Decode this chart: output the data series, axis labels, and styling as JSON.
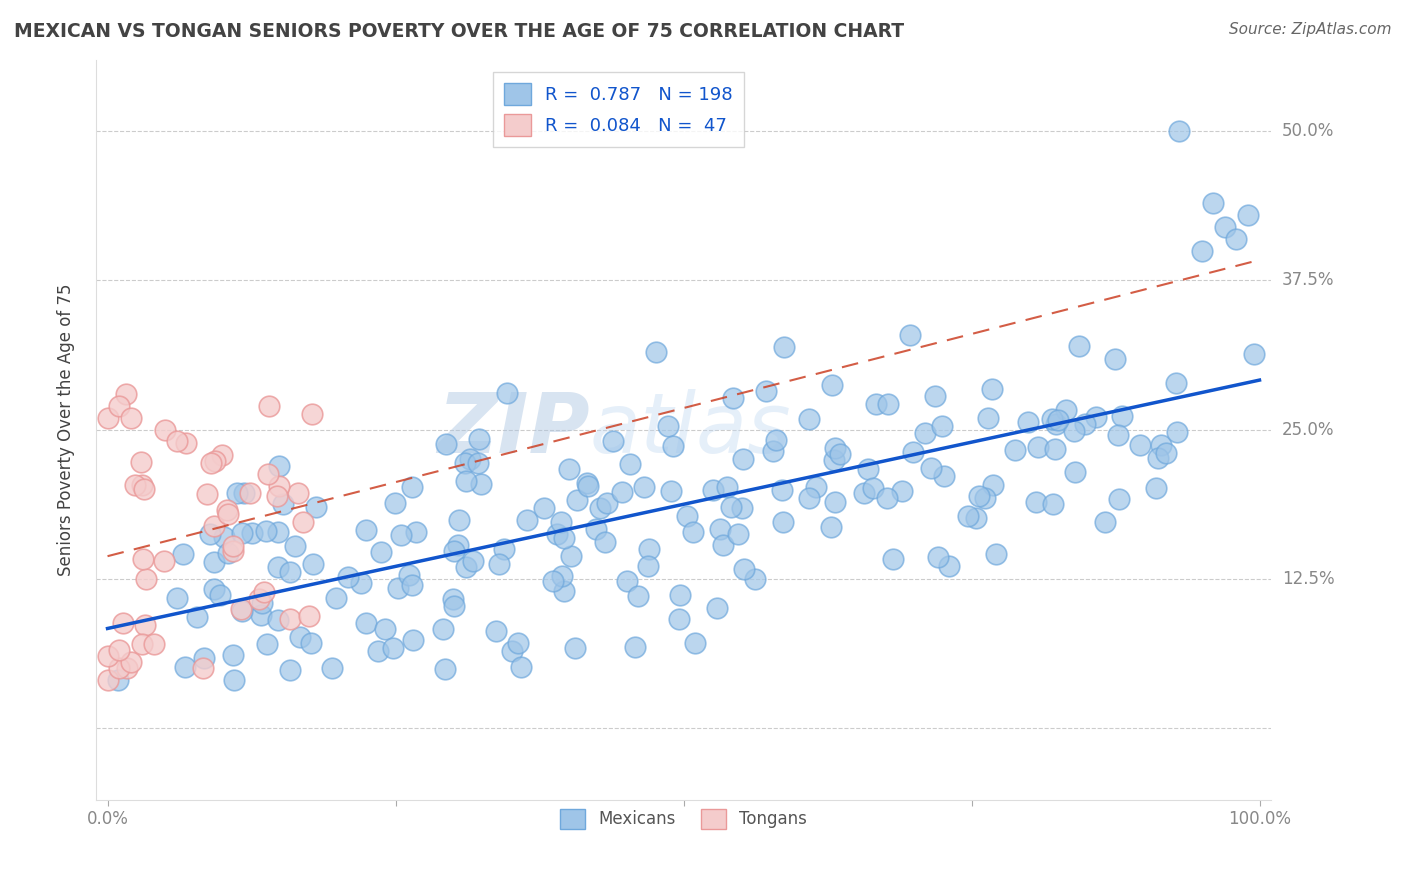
{
  "title": "MEXICAN VS TONGAN SENIORS POVERTY OVER THE AGE OF 75 CORRELATION CHART",
  "source": "Source: ZipAtlas.com",
  "ylabel": "Seniors Poverty Over the Age of 75",
  "xlabel": "",
  "xlim": [
    -0.01,
    1.01
  ],
  "ylim": [
    -0.06,
    0.56
  ],
  "x_ticks": [
    0.0,
    0.25,
    0.5,
    0.75,
    1.0
  ],
  "x_tick_labels": [
    "0.0%",
    "",
    "",
    "",
    "100.0%"
  ],
  "y_ticks": [
    0.0,
    0.125,
    0.25,
    0.375,
    0.5
  ],
  "y_tick_labels_right": [
    "",
    "12.5%",
    "25.0%",
    "37.5%",
    "50.0%"
  ],
  "mexican_color": "#9fc5e8",
  "mexican_edge_color": "#6fa8dc",
  "tongan_color": "#f4cccc",
  "tongan_edge_color": "#ea9999",
  "mexican_line_color": "#1155cc",
  "tongan_line_color": "#cc4125",
  "R_mexican": 0.787,
  "N_mexican": 198,
  "R_tongan": 0.084,
  "N_tongan": 47,
  "watermark_zip": "ZIP",
  "watermark_atlas": "atlas",
  "background_color": "#ffffff",
  "grid_color": "#cccccc",
  "title_color": "#434343",
  "source_color": "#666666",
  "axis_label_color": "#434343",
  "tick_color": "#888888",
  "legend_label_mexican": "Mexicans",
  "legend_label_tongan": "Tongans",
  "legend_R_color": "#1155cc",
  "legend_N_color": "#1155cc"
}
